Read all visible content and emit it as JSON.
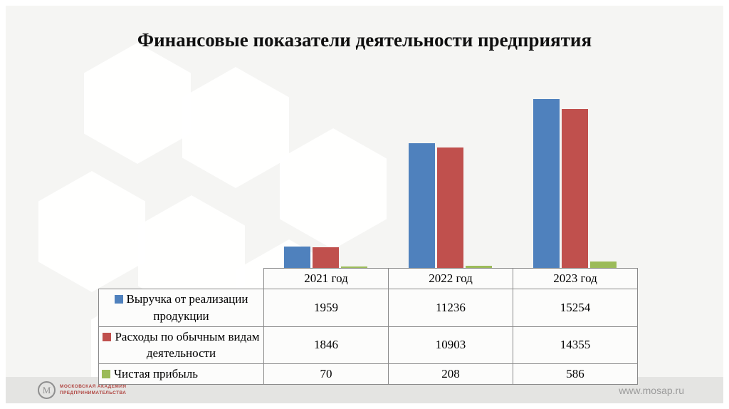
{
  "title": "Финансовые показатели деятельности предприятия",
  "footer": {
    "logo_line1": "МОСКОВСКАЯ АКАДЕМИЯ",
    "logo_line2": "ПРЕДПРИНИМАТЕЛЬСТВА",
    "website": "www.mosap.ru"
  },
  "chart_data": {
    "type": "bar",
    "title": "Финансовые показатели деятельности предприятия",
    "categories": [
      "2021 год",
      "2022 год",
      "2023 год"
    ],
    "series": [
      {
        "name": "Выручка от реализации продукции",
        "color": "#4f81bd",
        "values": [
          1959,
          11236,
          15254
        ]
      },
      {
        "name": "Расходы по обычным видам деятельности",
        "color": "#c0504d",
        "values": [
          1846,
          10903,
          14355
        ]
      },
      {
        "name": "Чистая прибыль",
        "color": "#9bbb59",
        "values": [
          70,
          208,
          586
        ]
      }
    ],
    "ylim": [
      0,
      16000
    ],
    "grid": false,
    "legend_position": "table-rows-left",
    "has_data_table": true
  }
}
